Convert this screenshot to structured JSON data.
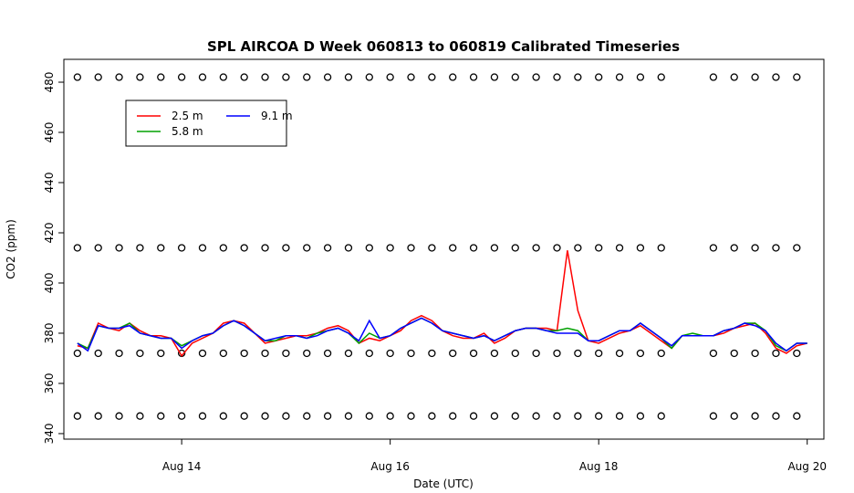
{
  "chart_data": {
    "type": "line",
    "title": "SPL AIRCOA D  Week 060813 to 060819  Calibrated Timeseries",
    "x_label": "Date (UTC)",
    "y_label": "CO2 (ppm)",
    "xlim": [
      12.87,
      20.16
    ],
    "ylim": [
      337.8,
      489.1
    ],
    "xticks": [
      {
        "value": 14,
        "label": "Aug 14"
      },
      {
        "value": 16,
        "label": "Aug 16"
      },
      {
        "value": 18,
        "label": "Aug 18"
      },
      {
        "value": 20,
        "label": "Aug 20"
      }
    ],
    "yticks": [
      340,
      360,
      380,
      400,
      420,
      440,
      460,
      480
    ],
    "legend": "topleft",
    "x": [
      13,
      13.1,
      13.2,
      13.3,
      13.4,
      13.5,
      13.6,
      13.7,
      13.8,
      13.9,
      14,
      14.1,
      14.2,
      14.3,
      14.4,
      14.5,
      14.6,
      14.7,
      14.8,
      14.9,
      15,
      15.1,
      15.2,
      15.3,
      15.4,
      15.5,
      15.6,
      15.7,
      15.8,
      15.9,
      16,
      16.1,
      16.2,
      16.3,
      16.4,
      16.5,
      16.6,
      16.7,
      16.8,
      16.9,
      17,
      17.1,
      17.2,
      17.3,
      17.4,
      17.5,
      17.6,
      17.7,
      17.8,
      17.9,
      18,
      18.1,
      18.2,
      18.3,
      18.4,
      18.5,
      18.6,
      18.7,
      18.8,
      18.9,
      19,
      19.1,
      19.2,
      19.3,
      19.4,
      19.5,
      19.6,
      19.7,
      19.8,
      19.9,
      20
    ],
    "series": [
      {
        "name": "2.5 m",
        "color": "#ff0000",
        "values": [
          375,
          374,
          384,
          382,
          381,
          384,
          381,
          379,
          379,
          378,
          371,
          376,
          378,
          380,
          384,
          385,
          384,
          380,
          376,
          377,
          378,
          379,
          379,
          380,
          382,
          383,
          381,
          376,
          378,
          377,
          379,
          381,
          385,
          387,
          385,
          381,
          379,
          378,
          378,
          380,
          376,
          378,
          381,
          382,
          382,
          382,
          381,
          413,
          389,
          377,
          376,
          378,
          380,
          381,
          383,
          380,
          377,
          374,
          379,
          379,
          379,
          379,
          380,
          382,
          383,
          384,
          380,
          374,
          372,
          375,
          376
        ]
      },
      {
        "name": "5.8 m",
        "color": "#00a000",
        "values": [
          376,
          374,
          383,
          382,
          382,
          384,
          380,
          379,
          378,
          378,
          375,
          377,
          379,
          380,
          383,
          385,
          383,
          380,
          377,
          377,
          379,
          379,
          378,
          380,
          381,
          382,
          380,
          376,
          380,
          378,
          379,
          382,
          384,
          386,
          384,
          381,
          380,
          379,
          378,
          379,
          377,
          379,
          381,
          382,
          382,
          381,
          381,
          382,
          381,
          377,
          377,
          379,
          381,
          381,
          384,
          381,
          378,
          374,
          379,
          380,
          379,
          379,
          381,
          382,
          384,
          384,
          381,
          375,
          373,
          376,
          376
        ]
      },
      {
        "name": "9.1 m",
        "color": "#0000ff",
        "values": [
          376,
          373,
          383,
          382,
          382,
          383,
          380,
          379,
          378,
          378,
          374,
          377,
          379,
          380,
          383,
          385,
          383,
          380,
          377,
          378,
          379,
          379,
          378,
          379,
          381,
          382,
          380,
          377,
          385,
          378,
          379,
          382,
          384,
          386,
          384,
          381,
          380,
          379,
          378,
          379,
          377,
          379,
          381,
          382,
          382,
          381,
          380,
          380,
          380,
          377,
          377,
          379,
          381,
          381,
          384,
          381,
          378,
          375,
          379,
          379,
          379,
          379,
          381,
          382,
          384,
          383,
          381,
          376,
          373,
          376,
          376
        ]
      }
    ],
    "points": {
      "color": "#000000",
      "x": [
        13,
        13.2,
        13.4,
        13.6,
        13.8,
        14,
        14.2,
        14.4,
        14.6,
        14.8,
        15,
        15.2,
        15.4,
        15.6,
        15.8,
        16,
        16.2,
        16.4,
        16.6,
        16.8,
        17,
        17.2,
        17.4,
        17.6,
        17.8,
        18,
        18.2,
        18.4,
        18.6,
        19.1,
        19.3,
        19.5,
        19.7,
        19.9
      ],
      "series": [
        {
          "values": [
            482,
            482,
            482,
            482,
            482,
            482,
            482,
            482,
            482,
            482,
            482,
            482,
            482,
            482,
            482,
            482,
            482,
            482,
            482,
            482,
            482,
            482,
            482,
            482,
            482,
            482,
            482,
            482,
            482,
            482,
            482,
            482,
            482,
            482
          ]
        },
        {
          "values": [
            414,
            414,
            414,
            414,
            414,
            414,
            414,
            414,
            414,
            414,
            414,
            414,
            414,
            414,
            414,
            414,
            414,
            414,
            414,
            414,
            414,
            414,
            414,
            414,
            414,
            414,
            414,
            414,
            414,
            414,
            414,
            414,
            414,
            414
          ]
        },
        {
          "values": [
            372,
            372,
            372,
            372,
            372,
            372,
            372,
            372,
            372,
            372,
            372,
            372,
            372,
            372,
            372,
            372,
            372,
            372,
            372,
            372,
            372,
            372,
            372,
            372,
            372,
            372,
            372,
            372,
            372,
            372,
            372,
            372,
            372,
            372
          ]
        },
        {
          "values": [
            347,
            347,
            347,
            347,
            347,
            347,
            347,
            347,
            347,
            347,
            347,
            347,
            347,
            347,
            347,
            347,
            347,
            347,
            347,
            347,
            347,
            347,
            347,
            347,
            347,
            347,
            347,
            347,
            347,
            347,
            347,
            347,
            347,
            347
          ]
        }
      ]
    }
  }
}
